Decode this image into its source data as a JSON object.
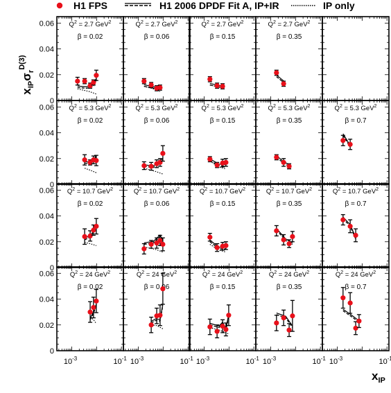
{
  "chart_data": {
    "type": "scatter",
    "legend": {
      "placement": "top",
      "data_label": "H1 FPS",
      "fit_label": "H1 2006 DPDF Fit A, IP+IR",
      "ip_label": "IP only"
    },
    "ylabel_main": "x",
    "ylabel_sub": "IP",
    "ylabel_sigma": "σ",
    "ylabel_r": "r",
    "ylabel_sup": "D(3)",
    "xlabel_main": "x",
    "xlabel_sub": "IP",
    "x_scale": "log",
    "xlim": [
      0.00025,
      0.12
    ],
    "ylim": [
      0,
      0.065
    ],
    "yticks": [
      "0",
      "0.02",
      "0.04",
      "0.06"
    ],
    "xtick_base": "10",
    "xtick_exponents": [
      "-3",
      "-1"
    ],
    "colors": {
      "data": "#e8101a",
      "curve": "#000000"
    },
    "panels": [
      {
        "row": 0,
        "col": 0,
        "q2": "Q",
        "q2_text": " = 2.7 GeV",
        "beta_text": "β = 0.02",
        "points": [
          [
            0.0017,
            0.015,
            0.003
          ],
          [
            0.0033,
            0.015,
            0.002
          ],
          [
            0.0055,
            0.0115,
            0.002
          ],
          [
            0.0075,
            0.014,
            0.002
          ],
          [
            0.0097,
            0.0195,
            0.004
          ]
        ],
        "fit": [
          [
            0.0017,
            0.01
          ],
          [
            0.004,
            0.0095
          ],
          [
            0.0075,
            0.011
          ],
          [
            0.0097,
            0.016
          ]
        ],
        "ip": [
          [
            0.0017,
            0.009
          ],
          [
            0.005,
            0.007
          ],
          [
            0.0097,
            0.005
          ]
        ]
      },
      {
        "row": 0,
        "col": 1,
        "q2": "Q",
        "q2_text": " = 2.7 GeV",
        "beta_text": "β = 0.06",
        "points": [
          [
            0.0017,
            0.015,
            0.002
          ],
          [
            0.0033,
            0.012,
            0.002
          ],
          [
            0.0055,
            0.0095,
            0.002
          ],
          [
            0.0075,
            0.01,
            0.002
          ]
        ],
        "fit": [
          [
            0.0017,
            0.011
          ],
          [
            0.004,
            0.0095
          ],
          [
            0.0075,
            0.009
          ]
        ],
        "ip": [
          [
            0.0017,
            0.011
          ],
          [
            0.004,
            0.009
          ],
          [
            0.0075,
            0.007
          ]
        ]
      },
      {
        "row": 0,
        "col": 2,
        "q2": "Q",
        "q2_text": " = 2.7 GeV",
        "beta_text": "β = 0.15",
        "points": [
          [
            0.0017,
            0.0165,
            0.002
          ],
          [
            0.0033,
            0.0115,
            0.002
          ],
          [
            0.0055,
            0.011,
            0.002
          ]
        ],
        "fit": [
          [
            0.0017,
            0.012
          ],
          [
            0.004,
            0.0105
          ],
          [
            0.0055,
            0.01
          ]
        ],
        "ip": [
          [
            0.0017,
            0.012
          ],
          [
            0.004,
            0.0105
          ],
          [
            0.0055,
            0.009
          ]
        ]
      },
      {
        "row": 0,
        "col": 3,
        "q2": "Q",
        "q2_text": " = 2.7 GeV",
        "beta_text": "β = 0.35",
        "points": [
          [
            0.0017,
            0.0215,
            0.002
          ],
          [
            0.0033,
            0.013,
            0.002
          ]
        ],
        "fit": [
          [
            0.0017,
            0.0185
          ],
          [
            0.0033,
            0.014
          ]
        ],
        "ip": []
      },
      {
        "row": 1,
        "col": 0,
        "q2": "Q",
        "q2_text": " = 5.3 GeV",
        "beta_text": "β = 0.02",
        "points": [
          [
            0.0033,
            0.019,
            0.004
          ],
          [
            0.0055,
            0.017,
            0.002
          ],
          [
            0.0075,
            0.019,
            0.003
          ],
          [
            0.0097,
            0.0185,
            0.004
          ]
        ],
        "fit": [
          [
            0.0033,
            0.0165
          ],
          [
            0.0055,
            0.016
          ],
          [
            0.0075,
            0.018
          ],
          [
            0.0097,
            0.021
          ]
        ],
        "ip": [
          [
            0.0033,
            0.0125
          ],
          [
            0.0055,
            0.011
          ],
          [
            0.0097,
            0.009
          ]
        ]
      },
      {
        "row": 1,
        "col": 1,
        "q2": "Q",
        "q2_text": " = 5.3 GeV",
        "beta_text": "β = 0.06",
        "points": [
          [
            0.0017,
            0.0145,
            0.003
          ],
          [
            0.0033,
            0.014,
            0.003
          ],
          [
            0.0055,
            0.016,
            0.003
          ],
          [
            0.0075,
            0.017,
            0.003
          ],
          [
            0.0097,
            0.024,
            0.006
          ]
        ],
        "fit": [
          [
            0.0017,
            0.014
          ],
          [
            0.004,
            0.013
          ],
          [
            0.0075,
            0.017
          ],
          [
            0.0097,
            0.019
          ]
        ],
        "ip": [
          [
            0.0017,
            0.0125
          ],
          [
            0.005,
            0.01
          ],
          [
            0.0097,
            0.008
          ]
        ]
      },
      {
        "row": 1,
        "col": 2,
        "q2": "Q",
        "q2_text": " = 5.3 GeV",
        "beta_text": "β = 0.15",
        "points": [
          [
            0.0017,
            0.0195,
            0.002
          ],
          [
            0.0033,
            0.015,
            0.002
          ],
          [
            0.0055,
            0.0165,
            0.003
          ],
          [
            0.0075,
            0.017,
            0.003
          ]
        ],
        "fit": [
          [
            0.0017,
            0.0185
          ],
          [
            0.004,
            0.0145
          ],
          [
            0.0075,
            0.014
          ]
        ],
        "ip": [
          [
            0.0017,
            0.018
          ],
          [
            0.004,
            0.0135
          ],
          [
            0.0075,
            0.012
          ]
        ]
      },
      {
        "row": 1,
        "col": 3,
        "q2": "Q",
        "q2_text": " = 5.3 GeV",
        "beta_text": "β = 0.35",
        "points": [
          [
            0.0017,
            0.021,
            0.002
          ],
          [
            0.0033,
            0.017,
            0.003
          ],
          [
            0.0055,
            0.014,
            0.002
          ]
        ],
        "fit": [
          [
            0.0017,
            0.021
          ],
          [
            0.0033,
            0.0165
          ],
          [
            0.0055,
            0.014
          ]
        ],
        "ip": []
      },
      {
        "row": 1,
        "col": 4,
        "q2": "Q",
        "q2_text": " = 5.3 GeV",
        "beta_text": "β = 0.7",
        "points": [
          [
            0.0017,
            0.034,
            0.004
          ],
          [
            0.0033,
            0.031,
            0.004
          ]
        ],
        "fit": [
          [
            0.0017,
            0.038
          ],
          [
            0.0033,
            0.029
          ]
        ],
        "ip": []
      },
      {
        "row": 2,
        "col": 0,
        "q2": "Q",
        "q2_text": " = 10.7 GeV",
        "beta_text": "β = 0.02",
        "points": [
          [
            0.0033,
            0.024,
            0.006
          ],
          [
            0.0055,
            0.0245,
            0.004
          ],
          [
            0.0075,
            0.029,
            0.004
          ],
          [
            0.0097,
            0.032,
            0.006
          ]
        ],
        "fit": [
          [
            0.0033,
            0.0215
          ],
          [
            0.0055,
            0.0235
          ],
          [
            0.0075,
            0.027
          ],
          [
            0.0097,
            0.032
          ]
        ],
        "ip": [
          [
            0.0033,
            0.0195
          ],
          [
            0.0055,
            0.0185
          ],
          [
            0.0097,
            0.017
          ]
        ]
      },
      {
        "row": 2,
        "col": 1,
        "q2": "Q",
        "q2_text": " = 10.7 GeV",
        "beta_text": "β = 0.06",
        "points": [
          [
            0.0017,
            0.0145,
            0.004
          ],
          [
            0.0033,
            0.018,
            0.003
          ],
          [
            0.0055,
            0.019,
            0.004
          ],
          [
            0.0075,
            0.021,
            0.004
          ],
          [
            0.0097,
            0.018,
            0.005
          ]
        ],
        "fit": [
          [
            0.0017,
            0.018
          ],
          [
            0.004,
            0.019
          ],
          [
            0.0075,
            0.024
          ],
          [
            0.0097,
            0.02
          ]
        ],
        "ip": [
          [
            0.0017,
            0.016
          ],
          [
            0.005,
            0.014
          ],
          [
            0.0097,
            0.012
          ]
        ]
      },
      {
        "row": 2,
        "col": 2,
        "q2": "Q",
        "q2_text": " = 10.7 GeV",
        "beta_text": "β = 0.15",
        "points": [
          [
            0.0017,
            0.0235,
            0.003
          ],
          [
            0.0033,
            0.0155,
            0.003
          ],
          [
            0.0055,
            0.0165,
            0.003
          ],
          [
            0.0075,
            0.017,
            0.003
          ]
        ],
        "fit": [
          [
            0.0017,
            0.02
          ],
          [
            0.004,
            0.0145
          ],
          [
            0.0075,
            0.0145
          ]
        ],
        "ip": [
          [
            0.0017,
            0.018
          ],
          [
            0.004,
            0.0135
          ],
          [
            0.0075,
            0.012
          ]
        ]
      },
      {
        "row": 2,
        "col": 3,
        "q2": "Q",
        "q2_text": " = 10.7 GeV",
        "beta_text": "β = 0.35",
        "points": [
          [
            0.0017,
            0.0285,
            0.004
          ],
          [
            0.0033,
            0.0215,
            0.004
          ],
          [
            0.0055,
            0.0185,
            0.003
          ],
          [
            0.0075,
            0.024,
            0.004
          ]
        ],
        "fit": [
          [
            0.0017,
            0.029
          ],
          [
            0.004,
            0.021
          ],
          [
            0.0075,
            0.018
          ]
        ],
        "ip": []
      },
      {
        "row": 2,
        "col": 4,
        "q2": "Q",
        "q2_text": " = 10.7 GeV",
        "beta_text": "β = 0.7",
        "points": [
          [
            0.0017,
            0.037,
            0.004
          ],
          [
            0.0033,
            0.032,
            0.005
          ],
          [
            0.0055,
            0.025,
            0.005
          ]
        ],
        "fit": [
          [
            0.0017,
            0.038
          ],
          [
            0.0033,
            0.032
          ],
          [
            0.0055,
            0.022
          ]
        ],
        "ip": []
      },
      {
        "row": 3,
        "col": 0,
        "q2": "Q",
        "q2_text": " = 24 GeV",
        "beta_text": "β = 0.02",
        "points": [
          [
            0.0055,
            0.03,
            0.008
          ],
          [
            0.0075,
            0.0335,
            0.008
          ],
          [
            0.0097,
            0.0385,
            0.009
          ]
        ],
        "fit": [
          [
            0.0055,
            0.024
          ],
          [
            0.0075,
            0.029
          ],
          [
            0.0097,
            0.035
          ]
        ],
        "ip": [
          [
            0.0055,
            0.026
          ],
          [
            0.0075,
            0.024
          ],
          [
            0.0097,
            0.021
          ]
        ]
      },
      {
        "row": 3,
        "col": 1,
        "q2": "Q",
        "q2_text": " = 24 GeV",
        "beta_text": "β = 0.06",
        "points": [
          [
            0.0033,
            0.02,
            0.006
          ],
          [
            0.0055,
            0.027,
            0.006
          ],
          [
            0.0075,
            0.0275,
            0.008
          ],
          [
            0.0097,
            0.048,
            0.012
          ]
        ],
        "fit": [
          [
            0.0033,
            0.0215
          ],
          [
            0.005,
            0.0235
          ],
          [
            0.0075,
            0.023
          ],
          [
            0.0097,
            0.035
          ]
        ],
        "ip": [
          [
            0.0033,
            0.02
          ],
          [
            0.0055,
            0.0195
          ],
          [
            0.0097,
            0.017
          ]
        ]
      },
      {
        "row": 3,
        "col": 2,
        "q2": "Q",
        "q2_text": " = 24 GeV",
        "beta_text": "β = 0.15",
        "points": [
          [
            0.0017,
            0.0185,
            0.006
          ],
          [
            0.0033,
            0.015,
            0.005
          ],
          [
            0.0055,
            0.019,
            0.005
          ],
          [
            0.0075,
            0.0165,
            0.005
          ],
          [
            0.0097,
            0.0275,
            0.008
          ]
        ],
        "fit": [
          [
            0.0017,
            0.02
          ],
          [
            0.004,
            0.018
          ],
          [
            0.0055,
            0.021
          ],
          [
            0.0075,
            0.016
          ],
          [
            0.0097,
            0.027
          ]
        ],
        "ip": [
          [
            0.0017,
            0.018
          ],
          [
            0.004,
            0.016
          ],
          [
            0.0097,
            0.013
          ]
        ]
      },
      {
        "row": 3,
        "col": 3,
        "q2": "Q",
        "q2_text": " = 24 GeV",
        "beta_text": "β = 0.35",
        "points": [
          [
            0.0017,
            0.0215,
            0.006
          ],
          [
            0.0033,
            0.0255,
            0.006
          ],
          [
            0.0055,
            0.016,
            0.005
          ],
          [
            0.0075,
            0.027,
            0.012
          ]
        ],
        "fit": [
          [
            0.0017,
            0.028
          ],
          [
            0.004,
            0.0255
          ],
          [
            0.0075,
            0.018
          ]
        ],
        "ip": []
      },
      {
        "row": 3,
        "col": 4,
        "q2": "Q",
        "q2_text": " = 24 GeV",
        "beta_text": "β = 0.7",
        "points": [
          [
            0.0017,
            0.041,
            0.008
          ],
          [
            0.0033,
            0.037,
            0.008
          ],
          [
            0.0055,
            0.0175,
            0.005
          ],
          [
            0.0075,
            0.023,
            0.005
          ]
        ],
        "fit": [
          [
            0.0017,
            0.031
          ],
          [
            0.004,
            0.026
          ],
          [
            0.0075,
            0.022
          ]
        ],
        "ip": []
      }
    ]
  }
}
